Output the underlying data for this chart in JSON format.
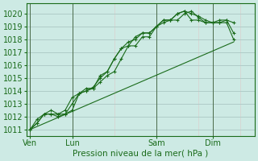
{
  "bg_color": "#cdeae4",
  "grid_color_major": "#b0ccc8",
  "grid_color_minor": "#ddc8c8",
  "line_color": "#1a6b1a",
  "marker_color": "#1a6b1a",
  "ylabel_ticks": [
    1011,
    1012,
    1013,
    1014,
    1015,
    1016,
    1017,
    1018,
    1019,
    1020
  ],
  "ylim": [
    1010.5,
    1020.8
  ],
  "xlabel": "Pression niveau de la mer( hPa )",
  "day_labels": [
    "Ven",
    "Lun",
    "Sam",
    "Dim"
  ],
  "day_positions": [
    0,
    6,
    18,
    26
  ],
  "xlim": [
    -0.5,
    32
  ],
  "series1": [
    [
      0,
      1011.0
    ],
    [
      1,
      1011.8
    ],
    [
      2,
      1012.2
    ],
    [
      3,
      1012.2
    ],
    [
      4,
      1012.0
    ],
    [
      5,
      1012.2
    ],
    [
      6,
      1013.0
    ],
    [
      7,
      1013.8
    ],
    [
      8,
      1014.0
    ],
    [
      9,
      1014.2
    ],
    [
      10,
      1014.7
    ],
    [
      11,
      1015.2
    ],
    [
      12,
      1015.5
    ],
    [
      13,
      1016.5
    ],
    [
      14,
      1017.5
    ],
    [
      15,
      1017.5
    ],
    [
      16,
      1018.2
    ],
    [
      17,
      1018.2
    ],
    [
      18,
      1019.0
    ],
    [
      19,
      1019.3
    ],
    [
      20,
      1019.5
    ],
    [
      21,
      1019.5
    ],
    [
      22,
      1020.0
    ],
    [
      23,
      1020.2
    ],
    [
      24,
      1019.7
    ],
    [
      25,
      1019.3
    ],
    [
      26,
      1019.3
    ],
    [
      27,
      1019.3
    ],
    [
      28,
      1019.3
    ],
    [
      29,
      1018.0
    ]
  ],
  "series2": [
    [
      0,
      1011.0
    ],
    [
      1,
      1011.5
    ],
    [
      2,
      1012.2
    ],
    [
      3,
      1012.2
    ],
    [
      4,
      1012.2
    ],
    [
      5,
      1012.2
    ],
    [
      6,
      1012.5
    ],
    [
      7,
      1013.8
    ],
    [
      8,
      1014.0
    ],
    [
      9,
      1014.3
    ],
    [
      10,
      1015.0
    ],
    [
      11,
      1015.5
    ],
    [
      12,
      1016.5
    ],
    [
      13,
      1017.3
    ],
    [
      14,
      1017.5
    ],
    [
      15,
      1018.2
    ],
    [
      16,
      1018.5
    ],
    [
      17,
      1018.5
    ],
    [
      18,
      1019.0
    ],
    [
      19,
      1019.5
    ],
    [
      20,
      1019.5
    ],
    [
      21,
      1020.0
    ],
    [
      22,
      1020.2
    ],
    [
      23,
      1020.0
    ],
    [
      24,
      1019.8
    ],
    [
      25,
      1019.5
    ],
    [
      26,
      1019.3
    ],
    [
      27,
      1019.5
    ],
    [
      28,
      1019.5
    ],
    [
      29,
      1019.3
    ]
  ],
  "series3_line": [
    [
      0,
      1011.0
    ],
    [
      29,
      1017.8
    ]
  ],
  "series4": [
    [
      0,
      1011.0
    ],
    [
      1,
      1011.5
    ],
    [
      2,
      1012.2
    ],
    [
      3,
      1012.5
    ],
    [
      4,
      1012.2
    ],
    [
      5,
      1012.5
    ],
    [
      6,
      1013.5
    ],
    [
      7,
      1013.8
    ],
    [
      8,
      1014.2
    ],
    [
      9,
      1014.2
    ],
    [
      10,
      1015.2
    ],
    [
      11,
      1015.5
    ],
    [
      12,
      1016.5
    ],
    [
      13,
      1017.3
    ],
    [
      14,
      1017.8
    ],
    [
      15,
      1018.0
    ],
    [
      16,
      1018.5
    ],
    [
      17,
      1018.5
    ],
    [
      18,
      1019.0
    ],
    [
      19,
      1019.5
    ],
    [
      20,
      1019.5
    ],
    [
      21,
      1020.0
    ],
    [
      22,
      1020.2
    ],
    [
      23,
      1019.5
    ],
    [
      24,
      1019.5
    ],
    [
      25,
      1019.3
    ],
    [
      26,
      1019.3
    ],
    [
      27,
      1019.3
    ],
    [
      28,
      1019.5
    ],
    [
      29,
      1018.5
    ]
  ]
}
